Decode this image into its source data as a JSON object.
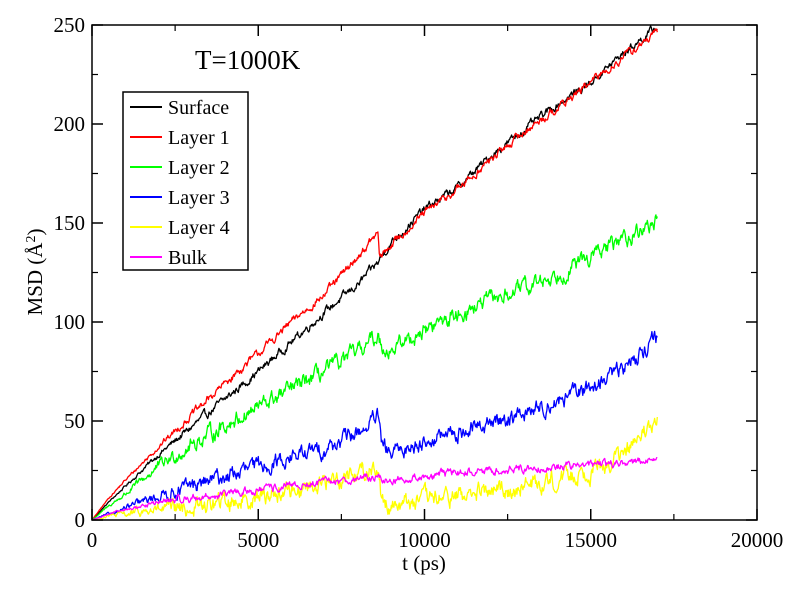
{
  "chart_data": {
    "type": "line",
    "annotation": "T=1000K",
    "xlabel": "t (ps)",
    "ylabel_text": "MSD (",
    "ylabel_unit": "Å",
    "ylabel_exp": "2",
    "ylabel_close": ")",
    "xlim": [
      0,
      20000
    ],
    "ylim": [
      0,
      250
    ],
    "x_ticks": [
      0,
      5000,
      10000,
      15000,
      20000
    ],
    "y_ticks": [
      0,
      50,
      100,
      150,
      200,
      250
    ],
    "legend_position": "upper-left",
    "grid": false,
    "series": [
      {
        "name": "Surface",
        "color": "#000000",
        "noise": 1.5,
        "x": [
          0,
          500,
          1000,
          2000,
          3000,
          4000,
          5000,
          6000,
          7000,
          8000,
          8600,
          8700,
          9000,
          10000,
          11000,
          12000,
          13000,
          14000,
          15000,
          16000,
          17000
        ],
        "y": [
          0,
          9,
          17,
          33,
          47,
          61,
          75,
          90,
          105,
          119,
          130,
          133,
          140,
          157,
          168,
          184,
          197,
          210,
          221,
          236,
          249
        ]
      },
      {
        "name": "Layer 1",
        "color": "#ff0000",
        "noise": 1.5,
        "x": [
          0,
          500,
          1000,
          2000,
          3000,
          4000,
          5000,
          6000,
          7000,
          8000,
          8600,
          8650,
          9000,
          10000,
          11000,
          12000,
          13000,
          14000,
          15000,
          16000,
          17000
        ],
        "y": [
          0,
          11,
          20,
          37,
          53,
          69,
          84,
          100,
          114,
          133,
          145,
          132,
          139,
          155,
          167,
          182,
          196,
          208,
          221,
          234,
          246
        ]
      },
      {
        "name": "Layer 2",
        "color": "#00ff00",
        "noise": 3,
        "x": [
          0,
          500,
          1000,
          2000,
          3000,
          4000,
          5000,
          6000,
          7000,
          8000,
          8600,
          8700,
          9000,
          10000,
          11000,
          12000,
          13000,
          14000,
          15000,
          16000,
          17000
        ],
        "y": [
          0,
          7,
          13,
          27,
          38,
          48,
          57,
          66,
          75,
          85,
          93,
          88,
          86,
          96,
          104,
          111,
          117,
          124,
          133,
          142,
          151
        ]
      },
      {
        "name": "Layer 3",
        "color": "#0000ff",
        "noise": 3,
        "x": [
          0,
          500,
          1000,
          2000,
          3000,
          4000,
          5000,
          6000,
          7000,
          8000,
          8600,
          8700,
          9000,
          10000,
          11000,
          12000,
          13000,
          14000,
          15000,
          16000,
          17000
        ],
        "y": [
          0,
          3,
          6,
          12,
          17,
          22,
          27,
          32,
          36,
          44,
          52,
          38,
          33,
          40,
          44,
          49,
          54,
          60,
          67,
          77,
          93
        ]
      },
      {
        "name": "Layer 4",
        "color": "#ffff00",
        "noise": 3.5,
        "x": [
          0,
          500,
          1000,
          2000,
          3000,
          4000,
          5000,
          6000,
          7000,
          8000,
          8600,
          8700,
          9000,
          10000,
          11000,
          12000,
          13000,
          14000,
          15000,
          16000,
          17000
        ],
        "y": [
          0,
          2,
          3,
          5,
          6,
          9,
          12,
          15,
          19,
          24,
          27,
          10,
          8,
          10,
          12,
          14,
          17,
          21,
          25,
          33,
          50
        ]
      },
      {
        "name": "Bulk",
        "color": "#ff00ff",
        "noise": 1.5,
        "x": [
          0,
          500,
          1000,
          2000,
          3000,
          4000,
          5000,
          6000,
          7000,
          8000,
          8600,
          8700,
          9000,
          10000,
          11000,
          12000,
          13000,
          14000,
          15000,
          16000,
          17000
        ],
        "y": [
          0,
          3,
          5,
          9,
          11,
          13,
          15,
          17,
          19,
          21,
          22,
          20,
          20,
          22,
          24,
          25,
          26,
          27,
          28,
          29,
          30
        ]
      }
    ]
  }
}
